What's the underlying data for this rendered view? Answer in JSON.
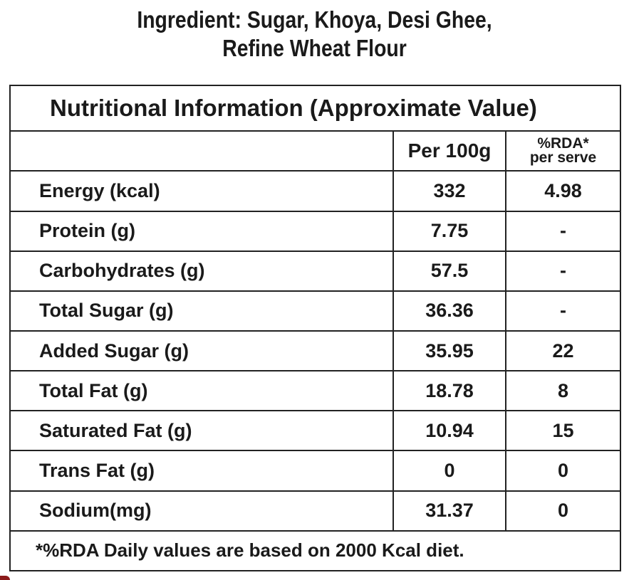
{
  "ingredients": {
    "line1": "Ingredient: Sugar, Khoya, Desi Ghee,",
    "line2": "Refine Wheat Flour"
  },
  "table": {
    "title": "Nutritional Information (Approximate Value)",
    "col_per": "Per 100g",
    "col_rda_line1": "%RDA*",
    "col_rda_line2": "per serve",
    "rows": [
      {
        "name": "Energy (kcal)",
        "per100g": "332",
        "rda": "4.98"
      },
      {
        "name": "Protein (g)",
        "per100g": "7.75",
        "rda": "-"
      },
      {
        "name": "Carbohydrates (g)",
        "per100g": "57.5",
        "rda": "-"
      },
      {
        "name": "Total Sugar (g)",
        "per100g": "36.36",
        "rda": "-"
      },
      {
        "name": "Added Sugar (g)",
        "per100g": "35.95",
        "rda": "22"
      },
      {
        "name": "Total Fat (g)",
        "per100g": "18.78",
        "rda": "8"
      },
      {
        "name": "Saturated Fat (g)",
        "per100g": "10.94",
        "rda": "15"
      },
      {
        "name": "Trans Fat (g)",
        "per100g": "0",
        "rda": "0"
      },
      {
        "name": "Sodium(mg)",
        "per100g": "31.37",
        "rda": "0"
      }
    ],
    "footnote": "*%RDA Daily values are based on 2000 Kcal diet."
  }
}
